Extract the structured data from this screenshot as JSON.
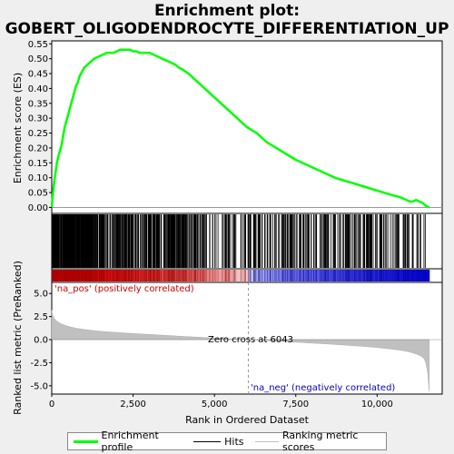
{
  "title_line1": "Enrichment plot:",
  "title_line2": "GOBERT_OLIGODENDROCYTE_DIFFERENTIATION_UP",
  "colors": {
    "enrichment": "#00ff00",
    "hits": "#000000",
    "metric_fill": "#c0c0c0",
    "pos": "#cc0000",
    "neg": "#0000cc"
  },
  "chart_data": [
    {
      "type": "line",
      "name": "enrichment-profile",
      "ylabel": "Enrichment score (ES)",
      "ylim": [
        -0.02,
        0.56
      ],
      "yticks": [
        "0.00",
        "0.05",
        "0.10",
        "0.15",
        "0.20",
        "0.25",
        "0.30",
        "0.35",
        "0.40",
        "0.45",
        "0.50",
        "0.55"
      ],
      "xlim": [
        0,
        12000
      ],
      "x": [
        0,
        40,
        80,
        120,
        160,
        200,
        250,
        300,
        350,
        400,
        450,
        500,
        550,
        600,
        650,
        700,
        750,
        800,
        850,
        900,
        950,
        1000,
        1100,
        1200,
        1300,
        1400,
        1500,
        1600,
        1700,
        1800,
        1900,
        2000,
        2100,
        2200,
        2300,
        2400,
        2500,
        2600,
        2700,
        2800,
        2900,
        3000,
        3100,
        3200,
        3300,
        3400,
        3500,
        3600,
        3700,
        3800,
        3900,
        4000,
        4200,
        4400,
        4600,
        4800,
        5000,
        5200,
        5400,
        5600,
        5800,
        6000,
        6300,
        6600,
        6900,
        7200,
        7500,
        7800,
        8100,
        8400,
        8700,
        9000,
        9300,
        9600,
        9900,
        10200,
        10500,
        10700,
        10900,
        11000,
        11100,
        11200,
        11300,
        11400,
        11500,
        11600
      ],
      "y": [
        0.0,
        0.05,
        0.09,
        0.12,
        0.15,
        0.17,
        0.19,
        0.21,
        0.24,
        0.27,
        0.29,
        0.31,
        0.33,
        0.35,
        0.37,
        0.39,
        0.41,
        0.42,
        0.44,
        0.45,
        0.46,
        0.47,
        0.48,
        0.49,
        0.5,
        0.505,
        0.51,
        0.515,
        0.52,
        0.52,
        0.52,
        0.525,
        0.53,
        0.53,
        0.53,
        0.53,
        0.525,
        0.525,
        0.52,
        0.52,
        0.52,
        0.52,
        0.515,
        0.51,
        0.505,
        0.5,
        0.495,
        0.49,
        0.485,
        0.48,
        0.47,
        0.465,
        0.45,
        0.43,
        0.41,
        0.39,
        0.37,
        0.35,
        0.33,
        0.31,
        0.29,
        0.27,
        0.25,
        0.22,
        0.2,
        0.18,
        0.16,
        0.145,
        0.13,
        0.115,
        0.1,
        0.09,
        0.08,
        0.07,
        0.06,
        0.05,
        0.04,
        0.035,
        0.025,
        0.02,
        0.02,
        0.025,
        0.02,
        0.015,
        0.005,
        0.0
      ]
    },
    {
      "type": "area",
      "name": "ranking-metric",
      "ylabel": "Ranked list metric (PreRanked)",
      "xlabel": "Rank in Ordered Dataset",
      "ylim": [
        -5.9,
        6.2
      ],
      "yticks": [
        "5.0",
        "2.5",
        "0.0",
        "-2.5",
        "-5.0"
      ],
      "xticks": [
        "0",
        "2,500",
        "5,000",
        "7,500",
        "10,000"
      ],
      "xlim": [
        0,
        12000
      ],
      "x": [
        0,
        20,
        60,
        120,
        200,
        300,
        450,
        600,
        800,
        1000,
        1300,
        1600,
        2000,
        2500,
        3000,
        3500,
        4000,
        4500,
        5000,
        5500,
        6043,
        6500,
        7000,
        7500,
        8000,
        8500,
        9000,
        9500,
        10000,
        10500,
        10800,
        11000,
        11200,
        11350,
        11450,
        11500,
        11550,
        11600
      ],
      "y": [
        3.2,
        2.8,
        2.4,
        2.1,
        1.9,
        1.7,
        1.5,
        1.35,
        1.2,
        1.1,
        0.98,
        0.88,
        0.78,
        0.66,
        0.56,
        0.46,
        0.36,
        0.27,
        0.18,
        0.09,
        0.0,
        -0.09,
        -0.18,
        -0.28,
        -0.38,
        -0.48,
        -0.6,
        -0.72,
        -0.86,
        -1.05,
        -1.2,
        -1.35,
        -1.55,
        -1.8,
        -2.1,
        -2.6,
        -3.5,
        -5.6
      ],
      "annotations": {
        "zero_cross": "Zero cross at 6043",
        "pos_label": "'na_pos' (positively correlated)",
        "neg_label": "'na_neg' (negatively correlated)"
      },
      "zero_cross_x": 6043
    }
  ],
  "legend": {
    "enrichment": "Enrichment profile",
    "hits": "Hits",
    "ranking": "Ranking metric scores"
  }
}
